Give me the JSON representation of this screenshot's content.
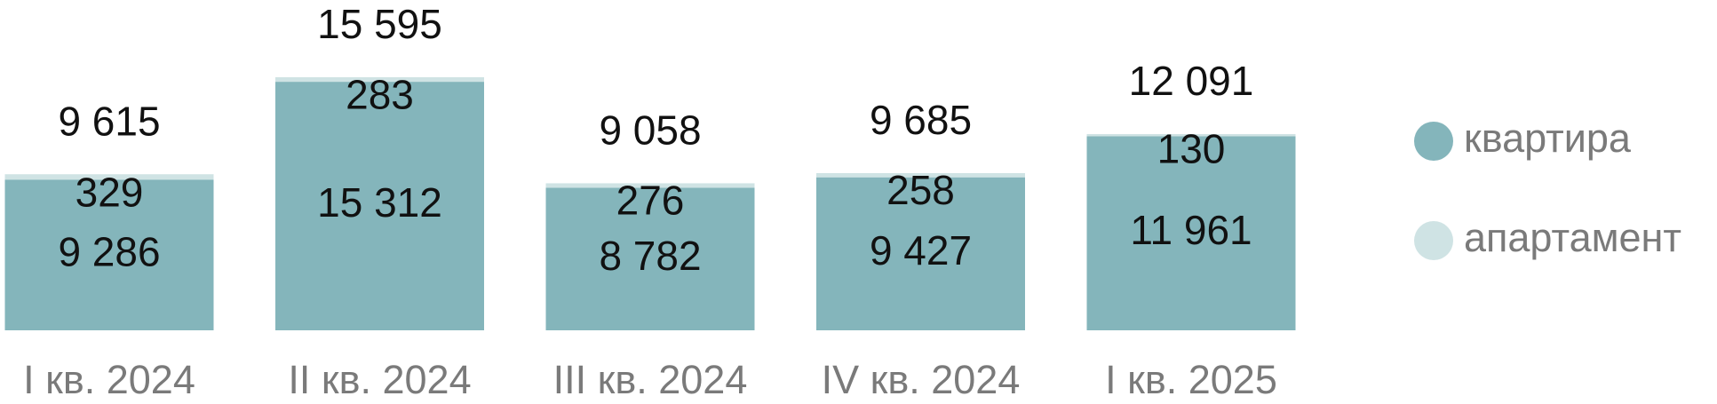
{
  "chart_data": {
    "type": "stacked_bar",
    "categories": [
      "I кв. 2024",
      "II кв. 2024",
      "III кв. 2024",
      "IV кв. 2024",
      "I кв. 2025"
    ],
    "series": [
      {
        "name": "квартира",
        "color": "#84b5bb",
        "values": [
          9286,
          15312,
          8782,
          9427,
          11961
        ],
        "value_labels": [
          "9 286",
          "15 312",
          "8 782",
          "9 427",
          "11 961"
        ]
      },
      {
        "name": "апартамент",
        "color": "#cfe3e4",
        "values": [
          329,
          283,
          276,
          258,
          130
        ]
      }
    ],
    "totals": {
      "values": [
        9615,
        15595,
        9058,
        9685,
        12091
      ],
      "value_labels": [
        "9 615",
        "15 595",
        "9 058",
        "9 685",
        "12 091"
      ]
    },
    "legend": "right"
  }
}
